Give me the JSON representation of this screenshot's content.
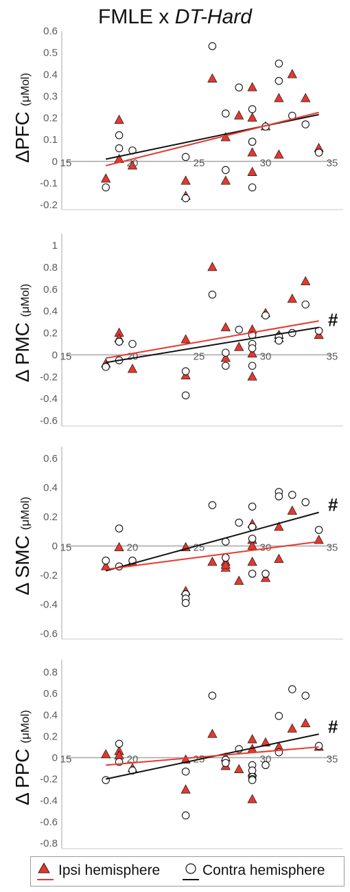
{
  "title": {
    "prefix": "FMLE x ",
    "italic": "DT-Hard"
  },
  "colors": {
    "ipsi": "#e8372c",
    "contra": "#ffffff",
    "contra_stroke": "#111111",
    "ipsi_line": "#e8372c",
    "contra_line": "#111111",
    "axis": "#a6a6a6"
  },
  "chart_data": [
    {
      "type": "scatter",
      "ylabel": "ΔPFC",
      "yunit": "(μMol)",
      "xlim": [
        15,
        35
      ],
      "ylim": [
        -0.2,
        0.6
      ],
      "yticks": [
        "-0.2",
        "-0.1",
        "0",
        "0.1",
        "0.2",
        "0.3",
        "0.4",
        "0.5",
        "0.6"
      ],
      "xticks": [
        "15",
        "20",
        "25",
        "30",
        "35"
      ],
      "marker": "",
      "series": [
        {
          "name": "Ipsi hemisphere",
          "marker": "triangle",
          "x": [
            18,
            19,
            19,
            20,
            24,
            24,
            26,
            27,
            27,
            28,
            29,
            29,
            29,
            29,
            30,
            31,
            31,
            32,
            33,
            34
          ],
          "y": [
            -0.08,
            0.19,
            0.01,
            -0.02,
            -0.09,
            -0.16,
            0.38,
            0.11,
            -0.09,
            0.21,
            0.34,
            0.2,
            0.04,
            -0.05,
            0.16,
            0.29,
            0.03,
            0.4,
            0.29,
            0.06
          ]
        },
        {
          "name": "Contra hemisphere",
          "marker": "circle",
          "x": [
            18,
            19,
            19,
            20,
            24,
            24,
            26,
            27,
            27,
            28,
            29,
            29,
            29,
            29,
            30,
            31,
            31,
            32,
            33,
            34
          ],
          "y": [
            -0.12,
            0.12,
            0.06,
            0.05,
            0.02,
            -0.17,
            0.53,
            0.22,
            -0.04,
            0.34,
            0.24,
            0.09,
            0.09,
            -0.12,
            0.16,
            0.45,
            0.37,
            0.21,
            0.17,
            0.04
          ]
        }
      ],
      "trendlines": [
        {
          "series": "Contra hemisphere",
          "x": [
            18,
            34
          ],
          "y": [
            0.01,
            0.215
          ]
        },
        {
          "series": "Ipsi hemisphere",
          "x": [
            18,
            34
          ],
          "y": [
            -0.02,
            0.225
          ]
        }
      ]
    },
    {
      "type": "scatter",
      "ylabel": "Δ PMC",
      "yunit": "(μMol)",
      "xlim": [
        15,
        35
      ],
      "ylim": [
        -0.6,
        1.0
      ],
      "yticks": [
        "-0.6",
        "-0.4",
        "-0.2",
        "0",
        "0.2",
        "0.4",
        "0.6",
        "0.8",
        "1"
      ],
      "xticks": [
        "15",
        "20",
        "25",
        "30",
        "35"
      ],
      "marker": "#",
      "series": [
        {
          "name": "Ipsi hemisphere",
          "marker": "triangle",
          "x": [
            18,
            19,
            19,
            20,
            24,
            24,
            26,
            27,
            27,
            28,
            29,
            29,
            29,
            30,
            31,
            31,
            32,
            33,
            34
          ],
          "y": [
            -0.08,
            0.2,
            0.15,
            -0.13,
            0.14,
            -0.19,
            0.8,
            0.25,
            -0.03,
            0.07,
            0.23,
            0.01,
            -0.2,
            0.38,
            0.15,
            0.18,
            0.51,
            0.67,
            0.18
          ]
        },
        {
          "name": "Contra hemisphere",
          "marker": "circle",
          "x": [
            18,
            19,
            19,
            20,
            24,
            24,
            26,
            27,
            27,
            28,
            29,
            29,
            29,
            29,
            30,
            31,
            31,
            32,
            33,
            34
          ],
          "y": [
            -0.11,
            0.12,
            -0.05,
            0.1,
            -0.15,
            -0.37,
            0.55,
            0.02,
            -0.1,
            0.23,
            0.18,
            0.1,
            0.06,
            -0.1,
            0.36,
            0.17,
            0.13,
            0.2,
            0.46,
            0.22
          ]
        }
      ],
      "trendlines": [
        {
          "series": "Contra hemisphere",
          "x": [
            18,
            34
          ],
          "y": [
            -0.07,
            0.25
          ]
        },
        {
          "series": "Ipsi hemisphere",
          "x": [
            18,
            34
          ],
          "y": [
            -0.03,
            0.31
          ]
        }
      ]
    },
    {
      "type": "scatter",
      "ylabel": "Δ SMC",
      "yunit": "(μMol)",
      "xlim": [
        15,
        35
      ],
      "ylim": [
        -0.6,
        0.6
      ],
      "yticks": [
        "-0.6",
        "-0.4",
        "-0.2",
        "0",
        "0.2",
        "0.4",
        "0.6"
      ],
      "xticks": [
        "15",
        "20",
        "25",
        "30",
        "35"
      ],
      "marker": "#",
      "series": [
        {
          "name": "Ipsi hemisphere",
          "marker": "triangle",
          "x": [
            18,
            19,
            20,
            24,
            24,
            26,
            27,
            27,
            27,
            28,
            29,
            29,
            29,
            29,
            30,
            31,
            31,
            32,
            34
          ],
          "y": [
            -0.14,
            -0.01,
            -0.11,
            -0.01,
            -0.31,
            -0.11,
            -0.11,
            -0.15,
            -0.13,
            -0.24,
            0.15,
            0.04,
            0,
            -0.11,
            -0.22,
            0.13,
            -0.09,
            0.24,
            0.04
          ]
        },
        {
          "name": "Contra hemisphere",
          "marker": "circle",
          "x": [
            18,
            19,
            19,
            20,
            24,
            24,
            24,
            26,
            27,
            27,
            28,
            29,
            29,
            29,
            29,
            30,
            31,
            31,
            32,
            33,
            34
          ],
          "y": [
            -0.1,
            0.12,
            -0.14,
            -0.1,
            -0.33,
            -0.36,
            -0.39,
            0.28,
            0.03,
            -0.08,
            0.16,
            0.27,
            0.13,
            0.05,
            -0.19,
            -0.19,
            0.37,
            0.34,
            0.35,
            0.3,
            0.11
          ]
        }
      ],
      "trendlines": [
        {
          "series": "Contra hemisphere",
          "x": [
            18,
            34
          ],
          "y": [
            -0.17,
            0.23
          ]
        },
        {
          "series": "Ipsi hemisphere",
          "x": [
            18,
            34
          ],
          "y": [
            -0.16,
            0.03
          ]
        }
      ]
    },
    {
      "type": "scatter",
      "ylabel": "Δ PPC",
      "yunit": "(μMol)",
      "xlim": [
        15,
        35
      ],
      "ylim": [
        -0.8,
        0.8
      ],
      "yticks": [
        "-0.8",
        "-0.6",
        "-0.4",
        "-0.2",
        "0",
        "0.2",
        "0.4",
        "0.6",
        "0.8"
      ],
      "xticks": [
        "15",
        "20",
        "25",
        "30",
        "35"
      ],
      "marker": "#",
      "series": [
        {
          "name": "Ipsi hemisphere",
          "marker": "triangle",
          "x": [
            18,
            19,
            19,
            20,
            24,
            24,
            26,
            27,
            27,
            28,
            29,
            29,
            29,
            29,
            30,
            31,
            32,
            33,
            34
          ],
          "y": [
            0.03,
            0.06,
            0.02,
            -0.1,
            -0.02,
            -0.3,
            0.22,
            0,
            -0.08,
            -0.11,
            0.17,
            0.08,
            -0.14,
            -0.39,
            0.14,
            0.1,
            0.27,
            0.32,
            0.1
          ]
        },
        {
          "name": "Contra hemisphere",
          "marker": "circle",
          "x": [
            18,
            19,
            19,
            20,
            24,
            24,
            26,
            27,
            27,
            28,
            29,
            29,
            29,
            29,
            29,
            30,
            31,
            31,
            32,
            33,
            34
          ],
          "y": [
            -0.21,
            0.13,
            -0.04,
            -0.12,
            -0.13,
            -0.54,
            0.58,
            -0.02,
            -0.05,
            0.08,
            -0.07,
            -0.12,
            -0.18,
            -0.2,
            -0.21,
            -0.07,
            0.39,
            0.05,
            0.64,
            0.58,
            0.11
          ]
        }
      ],
      "trendlines": [
        {
          "series": "Contra hemisphere",
          "x": [
            18,
            34
          ],
          "y": [
            -0.2,
            0.22
          ]
        },
        {
          "series": "Ipsi hemisphere",
          "x": [
            18,
            34
          ],
          "y": [
            -0.07,
            0.1
          ]
        }
      ]
    }
  ],
  "legend": {
    "ipsi_label": "Ipsi hemisphere",
    "contra_label": "Contra hemisphere"
  }
}
